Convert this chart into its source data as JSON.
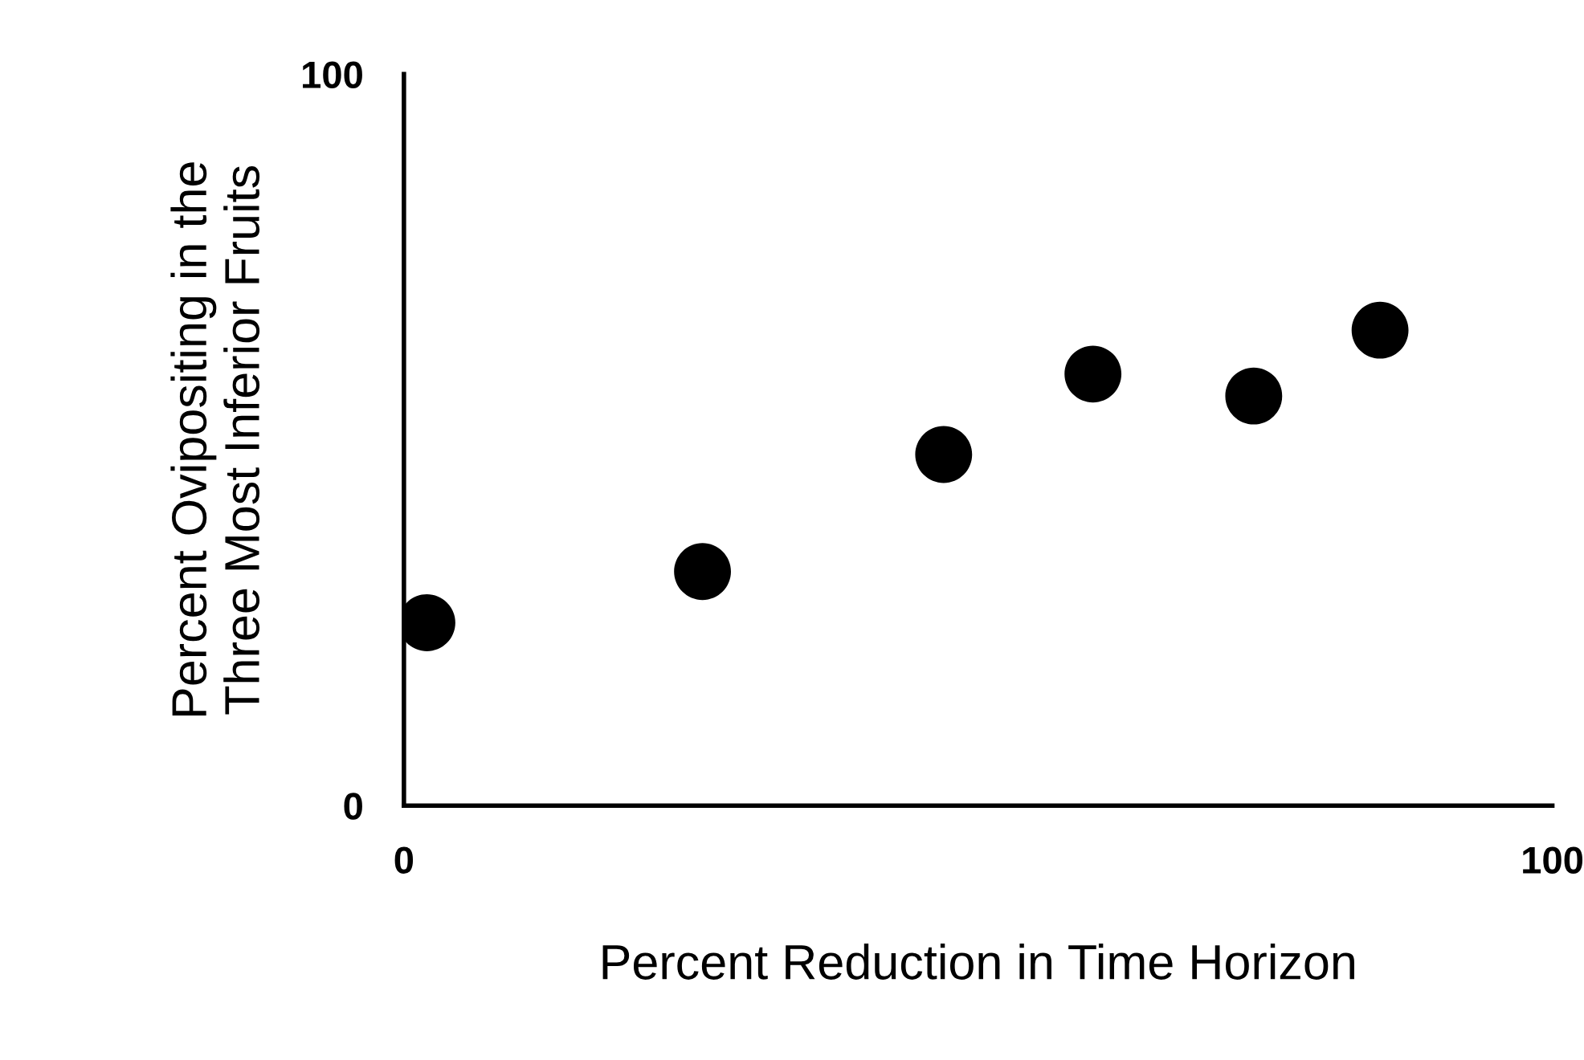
{
  "chart_data": {
    "type": "scatter",
    "xlabel": "Percent Reduction in Time Horizon",
    "ylabel": "Percent Ovipositing in the\nThree Most Inferior Fruits",
    "x": [
      2,
      26,
      47,
      60,
      74,
      85
    ],
    "series": [
      {
        "color": "#000000",
        "values": [
          25,
          32,
          48,
          59,
          56,
          65
        ]
      }
    ],
    "xlim": [
      0,
      100
    ],
    "ylim": [
      0,
      100
    ],
    "xticks": [
      0,
      100
    ],
    "yticks": [
      0,
      100
    ],
    "marker": "circle",
    "grid": false,
    "legend": false
  }
}
